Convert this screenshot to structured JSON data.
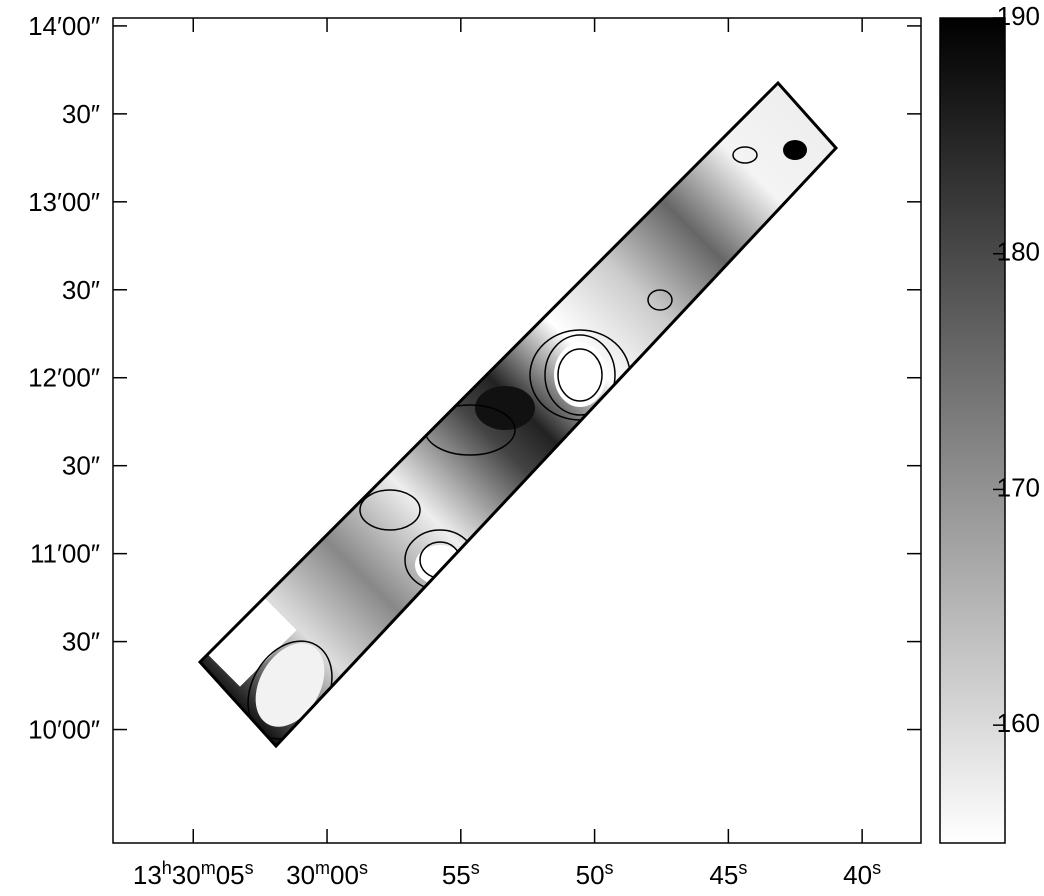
{
  "chart_data": {
    "type": "image",
    "xlim": [
      68,
      37.8
    ],
    "ylim": [
      561.3,
      842.7
    ],
    "xticks": [
      {
        "value": 65,
        "label": "13h30m05s"
      },
      {
        "value": 60,
        "label": "30m00s"
      },
      {
        "value": 55,
        "label": "55s"
      },
      {
        "value": 50,
        "label": "50s"
      },
      {
        "value": 45,
        "label": "45s"
      },
      {
        "value": 40,
        "label": "40s"
      }
    ],
    "yticks": [
      {
        "value": 600,
        "label": "10′00″"
      },
      {
        "value": 630,
        "label": "30″"
      },
      {
        "value": 660,
        "label": "11′00″"
      },
      {
        "value": 690,
        "label": "30″"
      },
      {
        "value": 720,
        "label": "12′00″"
      },
      {
        "value": 750,
        "label": "30″"
      },
      {
        "value": 780,
        "label": "13′00″"
      },
      {
        "value": 810,
        "label": "30″"
      },
      {
        "value": 840,
        "label": "14′00″"
      }
    ],
    "colorbar": {
      "lim": [
        155,
        190
      ],
      "ticks": [
        160,
        170,
        180,
        190
      ]
    }
  }
}
